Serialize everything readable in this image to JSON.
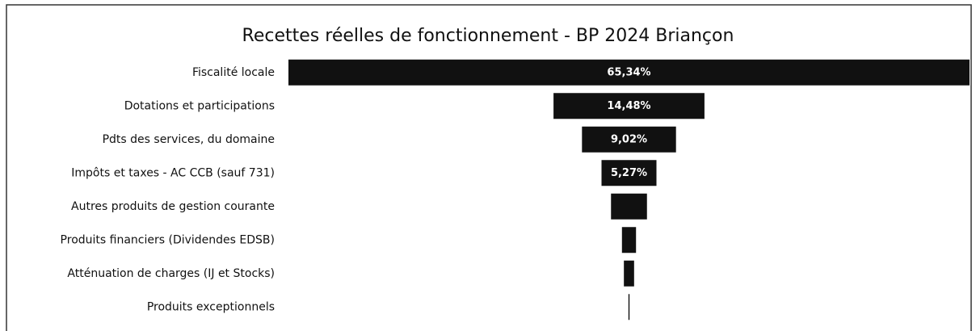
{
  "chart_data": {
    "type": "funnel",
    "title": "Recettes réelles de fonctionnement - BP 2024 Briançon",
    "categories": [
      "Fiscalité locale",
      "Dotations et participations",
      "Pdts des services, du domaine",
      "Impôts et taxes - AC CCB (sauf 731)",
      "Autres produits de gestion courante",
      "Produits financiers (Dividendes EDSB)",
      "Atténuation de charges (IJ et Stocks)",
      "Produits exceptionnels"
    ],
    "values": [
      65.34,
      14.48,
      9.02,
      5.27,
      3.45,
      1.35,
      0.98,
      0.11
    ],
    "value_labels": [
      "65,34%",
      "14,48%",
      "9,02%",
      "5,27%",
      null,
      null,
      null,
      null
    ],
    "color": "#111111"
  }
}
